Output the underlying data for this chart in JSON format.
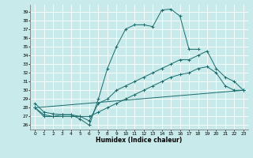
{
  "title": "",
  "xlabel": "Humidex (Indice chaleur)",
  "bg_color": "#c8eaea",
  "grid_color": "#ffffff",
  "line_color": "#1a6b6b",
  "xlim": [
    -0.5,
    23.5
  ],
  "ylim": [
    25.5,
    39.8
  ],
  "yticks": [
    26,
    27,
    28,
    29,
    30,
    31,
    32,
    33,
    34,
    35,
    36,
    37,
    38,
    39
  ],
  "xticks": [
    0,
    1,
    2,
    3,
    4,
    5,
    6,
    7,
    8,
    9,
    10,
    11,
    12,
    13,
    14,
    15,
    16,
    17,
    18,
    19,
    20,
    21,
    22,
    23
  ],
  "series": [
    {
      "x": [
        0,
        1,
        2,
        3,
        4,
        5,
        6,
        7,
        8,
        9,
        10,
        11,
        12,
        13,
        14,
        15,
        16,
        17,
        18
      ],
      "y": [
        28.5,
        27.5,
        27.3,
        27.2,
        27.2,
        26.7,
        26.0,
        29.0,
        32.5,
        35.0,
        37.0,
        37.5,
        37.5,
        37.3,
        39.2,
        39.3,
        38.5,
        34.7,
        34.7
      ]
    },
    {
      "x": [
        0,
        1,
        2,
        3,
        4,
        5,
        6,
        7,
        8,
        9,
        10,
        11,
        12,
        13,
        14,
        15,
        16,
        17,
        18,
        19,
        20,
        21,
        22,
        23
      ],
      "y": [
        28.0,
        27.2,
        27.0,
        27.0,
        27.0,
        27.0,
        27.0,
        27.5,
        28.0,
        28.5,
        29.0,
        29.5,
        30.0,
        30.5,
        31.0,
        31.5,
        31.8,
        32.0,
        32.5,
        32.7,
        32.0,
        30.5,
        30.0,
        30.0
      ]
    },
    {
      "x": [
        0,
        1,
        2,
        3,
        4,
        5,
        6,
        7,
        8,
        9,
        10,
        11,
        12,
        13,
        14,
        15,
        16,
        17,
        18,
        19,
        20,
        21,
        22,
        23
      ],
      "y": [
        28.0,
        27.0,
        27.0,
        27.2,
        27.2,
        27.0,
        26.5,
        28.5,
        29.0,
        30.0,
        30.5,
        31.0,
        31.5,
        32.0,
        32.5,
        33.0,
        33.5,
        33.5,
        34.0,
        34.5,
        32.5,
        31.5,
        31.0,
        30.0
      ]
    },
    {
      "x": [
        0,
        23
      ],
      "y": [
        28.0,
        30.0
      ]
    }
  ]
}
